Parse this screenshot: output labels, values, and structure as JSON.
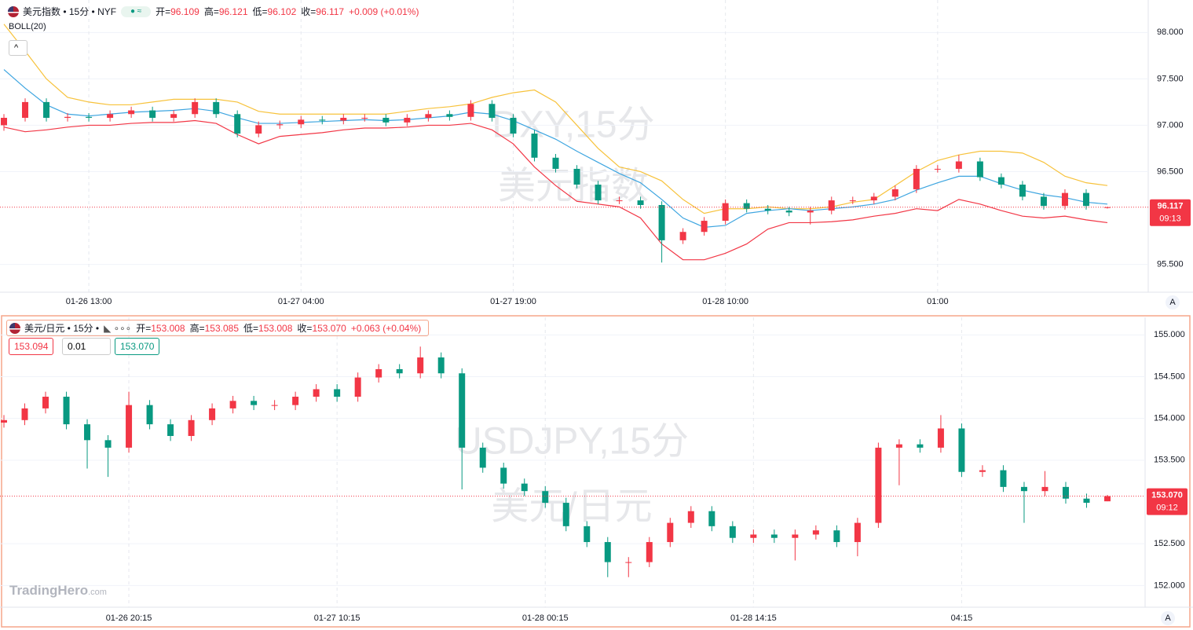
{
  "chart_data": [
    {
      "type": "candlestick",
      "title": "美元指数 • 15分 • NYF",
      "header_labels": [
        "开=",
        "高=",
        "低=",
        "收="
      ],
      "header_values": [
        "96.109",
        "96.121",
        "96.102",
        "96.117"
      ],
      "change": "+0.009 (+0.01%)",
      "indicator": "BOLL(20)",
      "watermark": [
        "DXY,15分",
        "美元指数"
      ],
      "last_price_label": "96.117",
      "countdown": "09:13",
      "axis_button": "A",
      "up_color": "#f23645",
      "down_color": "#089981",
      "categories": [
        null,
        null,
        null,
        null,
        "01-26 13:00",
        null,
        null,
        null,
        null,
        null,
        null,
        null,
        null,
        null,
        "01-27 04:00",
        null,
        null,
        null,
        null,
        null,
        null,
        null,
        null,
        null,
        "01-27 19:00",
        null,
        null,
        null,
        null,
        null,
        null,
        null,
        null,
        null,
        "01-28 10:00",
        null,
        null,
        null,
        null,
        null,
        null,
        null,
        null,
        null,
        "01:00",
        null,
        null,
        null,
        null,
        null,
        null,
        null,
        null
      ],
      "open": [
        97.0,
        97.08,
        97.25,
        97.08,
        97.09,
        97.08,
        97.12,
        97.16,
        97.08,
        97.12,
        97.25,
        97.12,
        96.91,
        97.0,
        97.01,
        97.06,
        97.05,
        97.08,
        97.08,
        97.03,
        97.08,
        97.12,
        97.09,
        97.23,
        97.08,
        96.91,
        96.65,
        96.53,
        96.36,
        96.19,
        96.19,
        96.14,
        95.76,
        95.85,
        95.97,
        96.16,
        96.1,
        96.08,
        96.06,
        96.08,
        96.19,
        96.19,
        96.23,
        96.31,
        96.53,
        96.53,
        96.61,
        96.44,
        96.36,
        96.23,
        96.13,
        96.27,
        96.109
      ],
      "high": [
        97.12,
        97.29,
        97.29,
        97.13,
        97.13,
        97.16,
        97.2,
        97.2,
        97.16,
        97.29,
        97.29,
        97.16,
        97.04,
        97.05,
        97.1,
        97.1,
        97.12,
        97.12,
        97.12,
        97.12,
        97.16,
        97.16,
        97.27,
        97.27,
        97.12,
        96.95,
        96.69,
        96.57,
        96.4,
        96.23,
        96.23,
        96.18,
        95.89,
        96.01,
        96.2,
        96.2,
        96.14,
        96.12,
        96.12,
        96.23,
        96.23,
        96.27,
        96.35,
        96.57,
        96.57,
        96.68,
        96.65,
        96.48,
        96.4,
        96.27,
        96.31,
        96.31,
        96.121
      ],
      "low": [
        96.94,
        97.04,
        97.04,
        97.04,
        97.04,
        97.04,
        97.08,
        97.04,
        97.04,
        97.08,
        97.08,
        96.87,
        96.87,
        96.96,
        96.97,
        97.01,
        97.01,
        97.04,
        96.99,
        96.99,
        97.04,
        97.05,
        97.05,
        97.04,
        96.87,
        96.61,
        96.49,
        96.32,
        96.15,
        96.15,
        96.1,
        95.52,
        95.72,
        95.81,
        95.93,
        96.06,
        96.04,
        96.02,
        95.93,
        96.04,
        96.15,
        96.15,
        96.19,
        96.27,
        96.49,
        96.49,
        96.4,
        96.32,
        96.19,
        96.09,
        96.09,
        96.09,
        96.102
      ],
      "close": [
        97.08,
        97.25,
        97.08,
        97.09,
        97.08,
        97.12,
        97.16,
        97.08,
        97.12,
        97.25,
        97.12,
        96.91,
        97.0,
        97.01,
        97.06,
        97.05,
        97.08,
        97.08,
        97.03,
        97.08,
        97.12,
        97.09,
        97.23,
        97.08,
        96.91,
        96.65,
        96.53,
        96.36,
        96.19,
        96.19,
        96.14,
        95.76,
        95.85,
        95.97,
        96.16,
        96.1,
        96.08,
        96.06,
        96.08,
        96.19,
        96.19,
        96.23,
        96.31,
        96.53,
        96.53,
        96.61,
        96.44,
        96.36,
        96.23,
        96.13,
        96.27,
        96.13,
        96.117
      ],
      "series": [
        {
          "color": "#f7c23b",
          "values": [
            98.09,
            97.8,
            97.5,
            97.3,
            97.25,
            97.22,
            97.22,
            97.25,
            97.28,
            97.28,
            97.28,
            97.25,
            97.15,
            97.12,
            97.12,
            97.12,
            97.12,
            97.12,
            97.12,
            97.15,
            97.18,
            97.2,
            97.23,
            97.3,
            97.35,
            97.38,
            97.25,
            97.0,
            96.75,
            96.55,
            96.5,
            96.4,
            96.2,
            96.05,
            96.1,
            96.1,
            96.12,
            96.1,
            96.1,
            96.12,
            96.17,
            96.2,
            96.35,
            96.5,
            96.62,
            96.68,
            96.72,
            96.72,
            96.7,
            96.6,
            96.45,
            96.38,
            96.35
          ]
        },
        {
          "color": "#3da5e0",
          "values": [
            97.6,
            97.4,
            97.22,
            97.12,
            97.1,
            97.12,
            97.14,
            97.15,
            97.16,
            97.18,
            97.15,
            97.08,
            97.02,
            97.02,
            97.03,
            97.04,
            97.05,
            97.06,
            97.05,
            97.06,
            97.08,
            97.1,
            97.14,
            97.12,
            97.05,
            96.95,
            96.85,
            96.72,
            96.6,
            96.48,
            96.38,
            96.2,
            96.0,
            95.9,
            95.92,
            96.05,
            96.08,
            96.1,
            96.08,
            96.1,
            96.12,
            96.15,
            96.2,
            96.3,
            96.38,
            96.45,
            96.45,
            96.37,
            96.3,
            96.25,
            96.22,
            96.17,
            96.15
          ]
        },
        {
          "color": "#f23645",
          "values": [
            96.98,
            96.93,
            96.95,
            96.98,
            97.0,
            97.0,
            97.02,
            97.03,
            97.03,
            97.05,
            97.02,
            96.9,
            96.8,
            96.88,
            96.9,
            96.92,
            96.95,
            96.97,
            96.97,
            96.98,
            97.0,
            97.0,
            97.02,
            96.95,
            96.8,
            96.55,
            96.35,
            96.18,
            96.15,
            96.12,
            96.0,
            95.72,
            95.55,
            95.55,
            95.62,
            95.72,
            95.88,
            95.95,
            95.95,
            95.96,
            95.98,
            96.02,
            96.05,
            96.1,
            96.08,
            96.2,
            96.15,
            96.08,
            96.02,
            96.0,
            96.02,
            95.98,
            95.95
          ]
        }
      ],
      "ylim": [
        95.2,
        98.35
      ],
      "yticks": [
        {
          "value": 95.5,
          "label": "95.500"
        },
        {
          "value": 96.5,
          "label": "96.500"
        },
        {
          "value": 97,
          "label": "97.000"
        },
        {
          "value": 97.5,
          "label": "97.500"
        },
        {
          "value": 98,
          "label": "98.000"
        }
      ]
    },
    {
      "type": "candlestick",
      "title": "美元/日元 • 15分 •",
      "header_labels": [
        "开=",
        "高=",
        "低=",
        "收="
      ],
      "header_values": [
        "153.008",
        "153.085",
        "153.008",
        "153.070"
      ],
      "change": "+0.063 (+0.04%)",
      "watermark": [
        "USDJPY,15分",
        "美元/日元"
      ],
      "order_buttons": [
        "153.094",
        "0.01",
        "153.070"
      ],
      "last_price_label": "153.070",
      "countdown": "09:12",
      "axis_button": "A",
      "brand": [
        "TradingHero",
        ".com"
      ],
      "up_color": "#f23645",
      "down_color": "#089981",
      "categories": [
        null,
        null,
        null,
        null,
        null,
        null,
        "01-26 20:15",
        null,
        null,
        null,
        null,
        null,
        null,
        null,
        null,
        null,
        "01-27 10:15",
        null,
        null,
        null,
        null,
        null,
        null,
        null,
        null,
        null,
        "01-28 00:15",
        null,
        null,
        null,
        null,
        null,
        null,
        null,
        null,
        null,
        "01-28 14:15",
        null,
        null,
        null,
        null,
        null,
        null,
        null,
        null,
        null,
        "04:15",
        null,
        null,
        null,
        null,
        null,
        null,
        null
      ],
      "open": [
        153.95,
        153.98,
        154.12,
        154.26,
        153.93,
        153.74,
        153.65,
        154.16,
        153.93,
        153.79,
        153.98,
        154.12,
        154.21,
        154.16,
        154.16,
        154.26,
        154.35,
        154.26,
        154.49,
        154.59,
        154.54,
        154.73,
        154.54,
        153.65,
        153.41,
        153.22,
        153.13,
        152.99,
        152.71,
        152.52,
        152.28,
        152.28,
        152.52,
        152.75,
        152.89,
        152.71,
        152.57,
        152.61,
        152.57,
        152.61,
        152.66,
        152.52,
        152.75,
        153.65,
        153.69,
        153.65,
        153.88,
        153.36,
        153.38,
        153.18,
        153.13,
        153.18,
        153.04,
        153.008
      ],
      "high": [
        154.04,
        154.18,
        154.32,
        154.32,
        153.99,
        153.8,
        154.32,
        154.22,
        153.99,
        154.04,
        154.18,
        154.27,
        154.27,
        154.22,
        154.32,
        154.41,
        154.41,
        154.55,
        154.65,
        154.65,
        154.86,
        154.79,
        154.6,
        153.71,
        153.47,
        153.28,
        153.19,
        153.05,
        152.77,
        152.58,
        152.34,
        152.58,
        152.81,
        152.95,
        152.95,
        152.77,
        152.67,
        152.67,
        152.67,
        152.72,
        152.72,
        152.81,
        153.71,
        153.75,
        153.75,
        154.04,
        153.94,
        153.44,
        153.44,
        153.24,
        153.37,
        153.24,
        153.1,
        153.085
      ],
      "low": [
        153.89,
        153.92,
        154.06,
        153.87,
        153.4,
        153.3,
        153.59,
        153.87,
        153.73,
        153.73,
        153.92,
        154.06,
        154.1,
        154.1,
        154.1,
        154.2,
        154.2,
        154.2,
        154.43,
        154.48,
        154.48,
        154.48,
        153.15,
        153.35,
        153.16,
        153.07,
        152.93,
        152.65,
        152.46,
        152.1,
        152.1,
        152.22,
        152.46,
        152.69,
        152.65,
        152.51,
        152.51,
        152.51,
        152.3,
        152.55,
        152.46,
        152.35,
        152.69,
        153.2,
        153.59,
        153.59,
        153.3,
        153.3,
        153.12,
        152.75,
        153.07,
        152.98,
        152.93,
        153.008
      ],
      "close": [
        153.98,
        154.12,
        154.26,
        153.93,
        153.74,
        153.65,
        154.16,
        153.93,
        153.79,
        153.98,
        154.12,
        154.21,
        154.16,
        154.16,
        154.26,
        154.35,
        154.26,
        154.49,
        154.59,
        154.54,
        154.73,
        154.54,
        153.65,
        153.41,
        153.22,
        153.13,
        152.99,
        152.71,
        152.52,
        152.28,
        152.28,
        152.52,
        152.75,
        152.89,
        152.71,
        152.57,
        152.61,
        152.57,
        152.61,
        152.66,
        152.52,
        152.75,
        153.65,
        153.69,
        153.65,
        153.88,
        153.36,
        153.38,
        153.18,
        153.13,
        153.18,
        153.04,
        152.99,
        153.07
      ],
      "ylim": [
        151.74,
        155.21
      ],
      "yticks": [
        {
          "value": 152,
          "label": "152.000"
        },
        {
          "value": 152.5,
          "label": "152.500"
        },
        {
          "value": 153.5,
          "label": "153.500"
        },
        {
          "value": 154,
          "label": "154.000"
        },
        {
          "value": 154.5,
          "label": "154.500"
        },
        {
          "value": 155,
          "label": "155.000"
        }
      ]
    }
  ]
}
